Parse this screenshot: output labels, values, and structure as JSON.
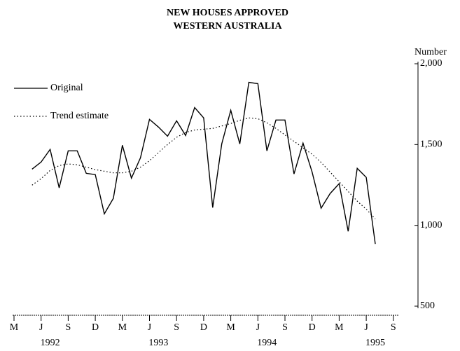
{
  "chart_data": {
    "type": "line",
    "title": "NEW HOUSES APPROVED",
    "subtitle": "WESTERN AUSTRALIA",
    "y_axis_label": "Number",
    "categories": [
      "M",
      null,
      null,
      "J",
      null,
      null,
      "S",
      null,
      null,
      "D",
      null,
      null,
      "M",
      null,
      null,
      "J",
      null,
      null,
      "S",
      null,
      null,
      "D",
      null,
      null,
      "M",
      null,
      null,
      "J",
      null,
      null,
      "S",
      null,
      null,
      "D",
      null,
      null,
      "M",
      null,
      null,
      "J",
      null,
      null,
      "S"
    ],
    "x_year_labels": [
      "1992",
      "1993",
      "1994",
      "1995"
    ],
    "series": [
      {
        "name": "Original",
        "color": "#000000",
        "dash": "solid",
        "values": [
          null,
          null,
          1348,
          1392,
          1470,
          1232,
          1461,
          1461,
          1322,
          1314,
          1071,
          1167,
          1496,
          1292,
          1418,
          1656,
          1608,
          1552,
          1647,
          1556,
          1729,
          1665,
          1110,
          1504,
          1712,
          1504,
          1885,
          1877,
          1461,
          1652,
          1652,
          1318,
          1509,
          1331,
          1106,
          1197,
          1258,
          963,
          1353,
          1297,
          885,
          null,
          null
        ]
      },
      {
        "name": "Trend estimate",
        "color": "#000000",
        "dash": "dotted",
        "values": [
          null,
          null,
          1249,
          1289,
          1340,
          1370,
          1380,
          1375,
          1360,
          1345,
          1335,
          1325,
          1325,
          1335,
          1360,
          1400,
          1450,
          1500,
          1545,
          1575,
          1590,
          1595,
          1600,
          1615,
          1630,
          1650,
          1665,
          1660,
          1635,
          1600,
          1560,
          1520,
          1480,
          1440,
          1390,
          1330,
          1270,
          1210,
          1150,
          1100,
          1040,
          null,
          null
        ]
      }
    ],
    "ylim": [
      500,
      2000
    ],
    "yticks": [
      {
        "value": 500,
        "label": "500"
      },
      {
        "value": 1000,
        "label": "1,000"
      },
      {
        "value": 1500,
        "label": "1,500"
      },
      {
        "value": 2000,
        "label": "2,000"
      }
    ],
    "legend": "top-left",
    "grid": false
  }
}
